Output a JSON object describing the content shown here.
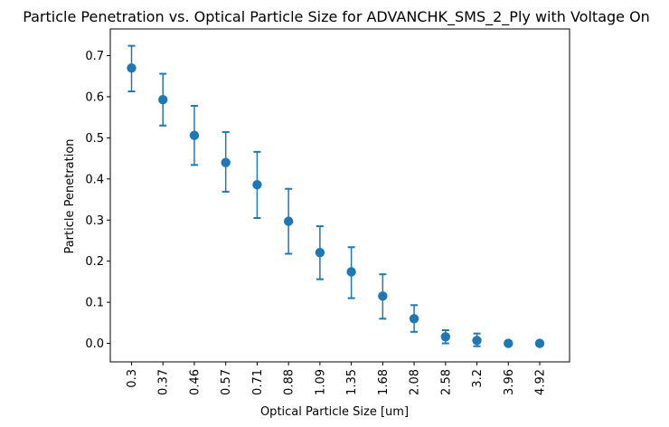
{
  "chart_data": {
    "type": "scatter",
    "title": "Particle Penetration vs. Optical Particle Size for ADVANCHK_SMS_2_Ply with Voltage On",
    "xlabel": "Optical Particle Size [um]",
    "ylabel": "Particle Penetration",
    "categories": [
      "0.3",
      "0.37",
      "0.46",
      "0.57",
      "0.71",
      "0.88",
      "1.09",
      "1.35",
      "1.68",
      "2.08",
      "2.58",
      "3.2",
      "3.96",
      "4.92"
    ],
    "values": [
      0.67,
      0.593,
      0.506,
      0.44,
      0.386,
      0.297,
      0.221,
      0.174,
      0.115,
      0.06,
      0.016,
      0.007,
      0.0,
      0.0
    ],
    "error_low": [
      0.613,
      0.53,
      0.434,
      0.369,
      0.305,
      0.218,
      0.156,
      0.11,
      0.06,
      0.028,
      0.0,
      -0.007,
      0.0,
      0.0
    ],
    "error_high": [
      0.724,
      0.656,
      0.578,
      0.514,
      0.466,
      0.376,
      0.285,
      0.234,
      0.168,
      0.093,
      0.032,
      0.024,
      0.0,
      0.0
    ],
    "yticks": [
      "0.0",
      "0.1",
      "0.2",
      "0.3",
      "0.4",
      "0.5",
      "0.6",
      "0.7"
    ],
    "ylim": [
      -0.045,
      0.765
    ],
    "grid": false,
    "color": "#1f77b4"
  }
}
